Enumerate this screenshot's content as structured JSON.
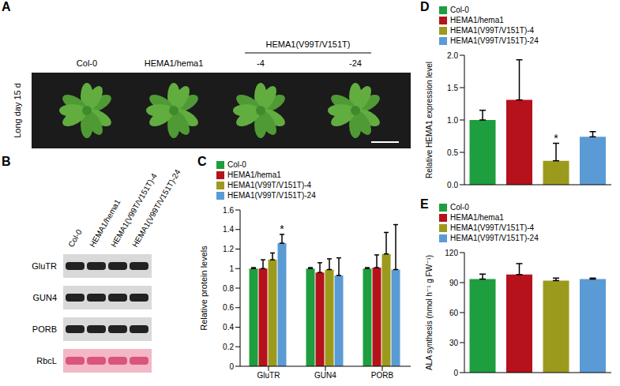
{
  "panel_a": {
    "letter": "A",
    "side_label": "Long day 15 d",
    "columns": [
      "Col-0",
      "HEMA1/hema1"
    ],
    "group": {
      "label": "HEMA1(V99T/V151T)",
      "columns": [
        "-4",
        "-24"
      ]
    }
  },
  "panel_b": {
    "letter": "B",
    "lanes": [
      "Col-0",
      "HEMA1/hema1",
      "HEMA1(V99T/V151T)-4",
      "HEMA1(V99T/V151T)-24"
    ],
    "rows": [
      "GluTR",
      "GUN4",
      "PORB",
      "RbcL"
    ]
  },
  "chart_data": [
    {
      "panel": "C",
      "type": "bar",
      "categories": [
        "GluTR",
        "GUN4",
        "PORB"
      ],
      "series": [
        {
          "name": "Col-0",
          "color": "#1e9e3e",
          "values": [
            1,
            1,
            1
          ],
          "errors": [
            0.01,
            0.01,
            0.01
          ]
        },
        {
          "name": "HEMA1/hema1",
          "color": "#b5121b",
          "values": [
            1.0,
            0.96,
            1.01
          ],
          "errors": [
            0.09,
            0.1,
            0.13
          ]
        },
        {
          "name": "HEMA1(V99T/V151T)-4",
          "color": "#9c9a1c",
          "values": [
            1.09,
            0.99,
            1.15
          ],
          "errors": [
            0.07,
            0.11,
            0.22
          ]
        },
        {
          "name": "HEMA1(V99T/V151T)-24",
          "color": "#5b9bd5",
          "values": [
            1.26,
            0.93,
            0.99
          ],
          "errors": [
            0.09,
            0.18,
            0.46
          ]
        }
      ],
      "ylabel": "Relative protein levels",
      "ylim": [
        0,
        1.6
      ],
      "yticks": [
        0,
        0.2,
        0.4,
        0.6,
        0.8,
        1,
        1.2,
        1.4,
        1.6
      ],
      "legend": "top",
      "annotations": [
        {
          "text": "*",
          "category": "GluTR",
          "series": "HEMA1(V99T/V151T)-24"
        }
      ]
    },
    {
      "panel": "D",
      "type": "bar",
      "categories": [
        "Col-0",
        "HEMA1/hema1",
        "HEMA1(V99T/V151T)-4",
        "HEMA1(V99T/V151T)-24"
      ],
      "values": [
        1.0,
        1.31,
        0.37,
        0.74
      ],
      "errors": [
        0.15,
        0.62,
        0.27,
        0.08
      ],
      "colors": [
        "#1e9e3e",
        "#b5121b",
        "#9c9a1c",
        "#5b9bd5"
      ],
      "ylabel": "Relative HEMA1 expression level",
      "ylim": [
        0,
        2
      ],
      "yticks": [
        {
          "value": 0,
          "label": "0.0"
        },
        {
          "value": 0.5,
          "label": "0.5"
        },
        {
          "value": 1,
          "label": "1.0"
        },
        {
          "value": 1.5,
          "label": "1.5"
        },
        {
          "value": 2,
          "label": "2.0"
        }
      ],
      "tick_labels": "y",
      "legend": "top",
      "annotations": [
        {
          "text": "*",
          "category": "HEMA1(V99T/V151T)-4"
        }
      ]
    },
    {
      "panel": "E",
      "type": "bar",
      "categories": [
        "Col-0",
        "HEMA1/hema1",
        "HEMA1(V99T/V151T)-4",
        "HEMA1(V99T/V151T)-24"
      ],
      "values": [
        93.5,
        98,
        92,
        93.5
      ],
      "errors": [
        5,
        11,
        2.5,
        1
      ],
      "colors": [
        "#1e9e3e",
        "#b5121b",
        "#9c9a1c",
        "#5b9bd5"
      ],
      "ylabel": "ALA synthesis (nmol h⁻¹ g FW⁻¹)",
      "ylim": [
        0,
        120
      ],
      "yticks": [
        0,
        30,
        60,
        90,
        120
      ],
      "tick_labels": "y",
      "legend": "top",
      "annotations": []
    }
  ]
}
